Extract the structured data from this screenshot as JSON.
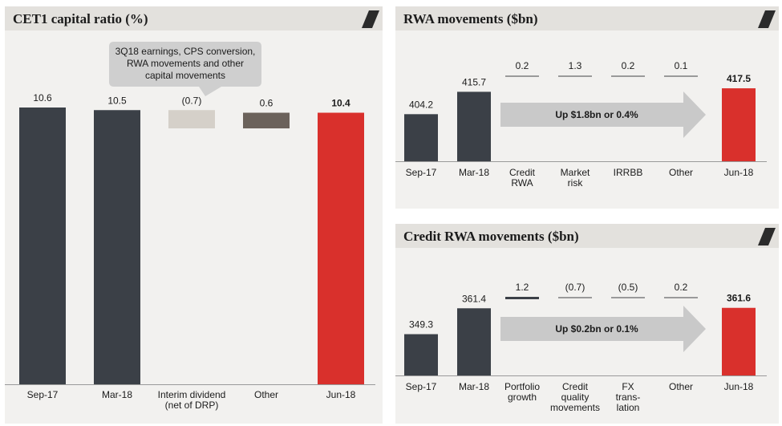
{
  "colors": {
    "dark": "#3b4047",
    "red": "#d9302c",
    "light": "#d5d0c9",
    "taupe": "#6b625b",
    "thin": "#9a9a9a",
    "arrow": "#c9c9c9"
  },
  "charts": [
    {
      "title": "CET1 capital ratio (%)",
      "callout": [
        "3Q18 earnings, CPS conversion,",
        "RWA movements and other",
        "capital movements"
      ],
      "chart_data": {
        "type": "bar",
        "categories": [
          [
            "Sep-17"
          ],
          [
            "Mar-18"
          ],
          [
            "Interim dividend",
            "(net of DRP)"
          ],
          [
            "Other"
          ],
          [
            "Jun-18"
          ]
        ],
        "values": [
          10.6,
          10.5,
          -0.7,
          0.6,
          10.4
        ],
        "labels": [
          "10.6",
          "10.5",
          "(0.7)",
          "0.6",
          "10.4"
        ],
        "kinds": [
          "total",
          "total",
          "delta",
          "delta",
          "total"
        ],
        "fills": [
          "dark",
          "dark",
          "light",
          "taupe",
          "red"
        ]
      }
    },
    {
      "title": "RWA movements ($bn)",
      "arrow_text": "Up $1.8bn or 0.4%",
      "chart_data": {
        "type": "bar",
        "categories": [
          [
            "Sep-17"
          ],
          [
            "Mar-18"
          ],
          [
            "Credit",
            "RWA"
          ],
          [
            "Market",
            "risk"
          ],
          [
            "IRRBB"
          ],
          [
            "Other"
          ],
          [
            "Jun-18"
          ]
        ],
        "values": [
          404.2,
          415.7,
          0.2,
          1.3,
          0.2,
          0.1,
          417.5
        ],
        "labels": [
          "404.2",
          "415.7",
          "0.2",
          "1.3",
          "0.2",
          "0.1",
          "417.5"
        ],
        "kinds": [
          "total",
          "total",
          "delta",
          "delta",
          "delta",
          "delta",
          "total"
        ],
        "fills": [
          "dark",
          "dark",
          "thin",
          "thin",
          "thin",
          "thin",
          "red"
        ]
      }
    },
    {
      "title": "Credit RWA movements ($bn)",
      "arrow_text": "Up $0.2bn or 0.1%",
      "chart_data": {
        "type": "bar",
        "categories": [
          [
            "Sep-17"
          ],
          [
            "Mar-18"
          ],
          [
            "Portfolio",
            "growth"
          ],
          [
            "Credit",
            "quality",
            "movements"
          ],
          [
            "FX",
            "trans-",
            "lation"
          ],
          [
            "Other"
          ],
          [
            "Jun-18"
          ]
        ],
        "values": [
          349.3,
          361.4,
          1.2,
          -0.7,
          -0.5,
          0.2,
          361.6
        ],
        "labels": [
          "349.3",
          "361.4",
          "1.2",
          "(0.7)",
          "(0.5)",
          "0.2",
          "361.6"
        ],
        "kinds": [
          "total",
          "total",
          "delta",
          "delta",
          "delta",
          "delta",
          "total"
        ],
        "fills": [
          "dark",
          "dark",
          "dark",
          "thin",
          "thin",
          "thin",
          "red"
        ]
      }
    }
  ]
}
